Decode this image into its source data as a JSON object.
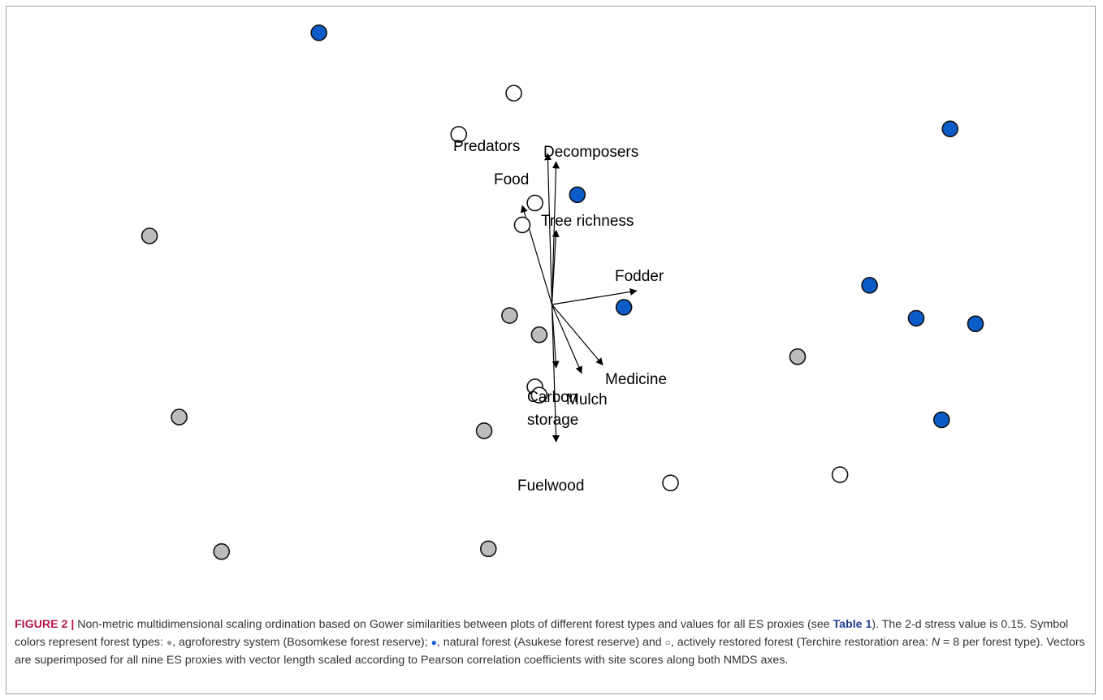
{
  "chart_data": {
    "type": "scatter",
    "title": "",
    "xlabel": "",
    "ylabel": "",
    "xlim": [
      -1.0,
      1.0
    ],
    "ylim": [
      -1.0,
      1.0
    ],
    "grid": false,
    "legend": "none",
    "series": [
      {
        "group": "agroforestry",
        "color": "#bcbcbc",
        "points": [
          [
            -0.95,
            0.25
          ],
          [
            -0.88,
            -0.41
          ],
          [
            -0.1,
            -0.04
          ],
          [
            -0.03,
            -0.11
          ],
          [
            -0.16,
            -0.46
          ],
          [
            -0.15,
            -0.89
          ],
          [
            -0.78,
            -0.9
          ],
          [
            0.58,
            -0.19
          ]
        ]
      },
      {
        "group": "natural",
        "color": "#0b5cc8",
        "points": [
          [
            -0.55,
            0.99
          ],
          [
            0.06,
            0.4
          ],
          [
            0.17,
            -0.01
          ],
          [
            0.75,
            0.07
          ],
          [
            0.94,
            0.64
          ],
          [
            0.86,
            -0.05
          ],
          [
            1.0,
            -0.07
          ],
          [
            0.92,
            -0.42
          ]
        ]
      },
      {
        "group": "restored",
        "color": "#ffffff",
        "points": [
          [
            -0.09,
            0.77
          ],
          [
            -0.22,
            0.62
          ],
          [
            -0.04,
            0.37
          ],
          [
            -0.07,
            0.29
          ],
          [
            -0.04,
            -0.3
          ],
          [
            -0.03,
            -0.33
          ],
          [
            0.28,
            -0.65
          ],
          [
            0.68,
            -0.62
          ]
        ]
      }
    ],
    "vectors": [
      {
        "name": "Predators",
        "x": -0.01,
        "y": 0.55
      },
      {
        "name": "Decomposers",
        "x": 0.01,
        "y": 0.52
      },
      {
        "name": "Food",
        "x": -0.07,
        "y": 0.36
      },
      {
        "name": "Tree richness",
        "x": 0.01,
        "y": 0.27
      },
      {
        "name": "Fodder",
        "x": 0.2,
        "y": 0.05
      },
      {
        "name": "Medicine",
        "x": 0.12,
        "y": -0.22
      },
      {
        "name": "Mulch",
        "x": 0.07,
        "y": -0.25
      },
      {
        "name": "Carbon storage",
        "x": 0.01,
        "y": -0.23
      },
      {
        "name": "Fuelwood",
        "x": 0.01,
        "y": -0.5
      }
    ]
  },
  "caption": {
    "fig_label": "FIGURE 2 |",
    "text1": " Non-metric multidimensional scaling ordination based on Gower similarities between plots of different forest types and values for all ES proxies (see ",
    "table_ref": "Table 1",
    "text2": "). The 2-d stress value is 0.15. Symbol colors represent forest types: ",
    "sym_agro": "●",
    "text3": ", agroforestry system (Bosomkese forest reserve); ",
    "sym_natural": "●",
    "text4": ", natural forest (Asukese forest reserve) and ",
    "sym_restored": "○",
    "text5": ", actively restored forest (Terchire restoration area: ",
    "n_var": "N",
    "text6": " = 8 per forest type). Vectors are superimposed for all nine ES proxies with vector length scaled according to Pearson correlation coefficients with site scores along both NMDS axes."
  }
}
